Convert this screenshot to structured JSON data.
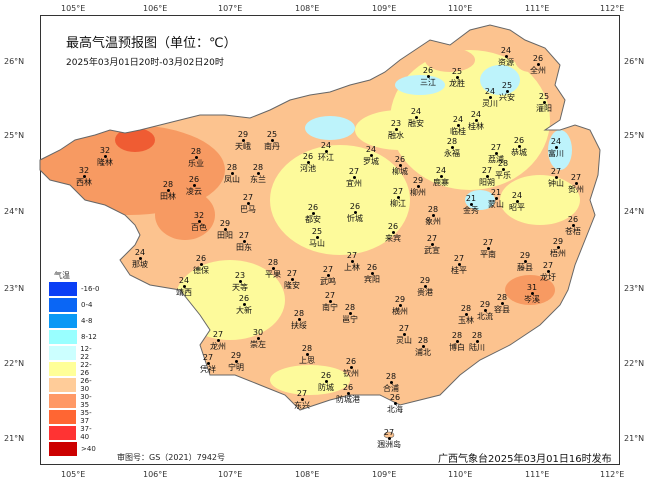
{
  "title": "最高气温预报图（单位：℃）",
  "subtitle": "2025年03月01日20时-03月02日20时",
  "lon_ticks": [
    "105°E",
    "106°E",
    "107°E",
    "108°E",
    "109°E",
    "110°E",
    "111°E",
    "112°E"
  ],
  "lat_ticks": [
    "26°N",
    "25°N",
    "24°N",
    "23°N",
    "22°N",
    "21°N"
  ],
  "legend": {
    "title": "气温",
    "items": [
      {
        "label": "-16-0",
        "color": "#0a3ff5"
      },
      {
        "label": "0-4",
        "color": "#0a66f5"
      },
      {
        "label": "4-8",
        "color": "#0a99f5"
      },
      {
        "label": "8-12",
        "color": "#99ffff"
      },
      {
        "label": "12-22",
        "color": "#ccffff"
      },
      {
        "label": "22-26",
        "color": "#ffff99"
      },
      {
        "label": "26-30",
        "color": "#ffcc99"
      },
      {
        "label": "30-35",
        "color": "#ff9966"
      },
      {
        "label": "35-37",
        "color": "#ff6633"
      },
      {
        "label": "37-40",
        "color": "#ff3333"
      },
      {
        "label": ">40",
        "color": "#cc0000"
      }
    ]
  },
  "cities": [
    {
      "name": "隆林",
      "t": "32"
    },
    {
      "name": "西林",
      "t": "32"
    },
    {
      "name": "乐业",
      "t": "28"
    },
    {
      "name": "凤山",
      "t": "28"
    },
    {
      "name": "田林",
      "t": "28"
    },
    {
      "name": "凌云",
      "t": "26"
    },
    {
      "name": "百色",
      "t": "32"
    },
    {
      "name": "天峨",
      "t": "29"
    },
    {
      "name": "南丹",
      "t": "25"
    },
    {
      "name": "环江",
      "t": "24"
    },
    {
      "name": "河池",
      "t": "26"
    },
    {
      "name": "东兰",
      "t": "28"
    },
    {
      "name": "罗城",
      "t": "24"
    },
    {
      "name": "融水",
      "t": "23"
    },
    {
      "name": "融安",
      "t": "24"
    },
    {
      "name": "宜州",
      "t": "27"
    },
    {
      "name": "柳城",
      "t": "26"
    },
    {
      "name": "鹿寨",
      "t": "24"
    },
    {
      "name": "柳州",
      "t": "29"
    },
    {
      "name": "柳江",
      "t": "27"
    },
    {
      "name": "巴马",
      "t": "27"
    },
    {
      "name": "都安",
      "t": "26"
    },
    {
      "name": "马山",
      "t": "25"
    },
    {
      "name": "忻城",
      "t": "26"
    },
    {
      "name": "来宾",
      "t": "26"
    },
    {
      "name": "田阳",
      "t": "29"
    },
    {
      "name": "田东",
      "t": "27"
    },
    {
      "name": "资源",
      "t": "24"
    },
    {
      "name": "全州",
      "t": "26"
    },
    {
      "name": "三江",
      "t": "26"
    },
    {
      "name": "龙胜",
      "t": "25"
    },
    {
      "name": "兴安",
      "t": "25"
    },
    {
      "name": "灌阳",
      "t": "25"
    },
    {
      "name": "灵川",
      "t": "24"
    },
    {
      "name": "桂林",
      "t": "24"
    },
    {
      "name": "临桂",
      "t": "24"
    },
    {
      "name": "永福",
      "t": "28"
    },
    {
      "name": "富川",
      "t": "24"
    },
    {
      "name": "阳朔",
      "t": "27"
    },
    {
      "name": "恭城",
      "t": "26"
    },
    {
      "name": "荔浦",
      "t": "27"
    },
    {
      "name": "平乐",
      "t": "28"
    },
    {
      "name": "钟山",
      "t": "27"
    },
    {
      "name": "贺州",
      "t": "27"
    },
    {
      "name": "金秀",
      "t": "21"
    },
    {
      "name": "蒙山",
      "t": "21"
    },
    {
      "name": "昭平",
      "t": "24"
    },
    {
      "name": "象州",
      "t": "28"
    },
    {
      "name": "苍梧",
      "t": "26"
    },
    {
      "name": "武宣",
      "t": "27"
    },
    {
      "name": "平南",
      "t": "27"
    },
    {
      "name": "桂平",
      "t": "27"
    },
    {
      "name": "藤县",
      "t": "29"
    },
    {
      "name": "梧州",
      "t": "29"
    },
    {
      "name": "龙圩",
      "t": "27"
    },
    {
      "name": "岑溪",
      "t": "31"
    },
    {
      "name": "容县",
      "t": "28"
    },
    {
      "name": "北流",
      "t": "29"
    },
    {
      "name": "玉林",
      "t": "28"
    },
    {
      "name": "博白",
      "t": "28"
    },
    {
      "name": "陆川",
      "t": "28"
    },
    {
      "name": "那坡",
      "t": "24"
    },
    {
      "name": "德保",
      "t": "26"
    },
    {
      "name": "靖西",
      "t": "24"
    },
    {
      "name": "天等",
      "t": "23"
    },
    {
      "name": "大新",
      "t": "26"
    },
    {
      "name": "平果",
      "t": "28"
    },
    {
      "name": "隆安",
      "t": "27"
    },
    {
      "name": "扶绥",
      "t": "28"
    },
    {
      "name": "龙州",
      "t": "27"
    },
    {
      "name": "崇左",
      "t": "30"
    },
    {
      "name": "宁明",
      "t": "29"
    },
    {
      "name": "凭祥",
      "t": "27"
    },
    {
      "name": "上思",
      "t": "28"
    },
    {
      "name": "上林",
      "t": "27"
    },
    {
      "name": "宾阳",
      "t": "26"
    },
    {
      "name": "武鸣",
      "t": "27"
    },
    {
      "name": "南宁",
      "t": "27"
    },
    {
      "name": "邕宁",
      "t": "28"
    },
    {
      "name": "贵港",
      "t": "29"
    },
    {
      "name": "横州",
      "t": "29"
    },
    {
      "name": "灵山",
      "t": "27"
    },
    {
      "name": "浦北",
      "t": "28"
    },
    {
      "name": "钦州",
      "t": "26"
    },
    {
      "name": "合浦",
      "t": "28"
    },
    {
      "name": "防城",
      "t": "26"
    },
    {
      "name": "防城港",
      "t": "26"
    },
    {
      "name": "东兴",
      "t": "27"
    },
    {
      "name": "北海",
      "t": "26"
    },
    {
      "name": "涠洲岛",
      "t": "27"
    }
  ],
  "footer": {
    "review_no": "审图号：GS（2021）7942号",
    "issuer": "广西气象台2025年03月01日16时发布"
  }
}
